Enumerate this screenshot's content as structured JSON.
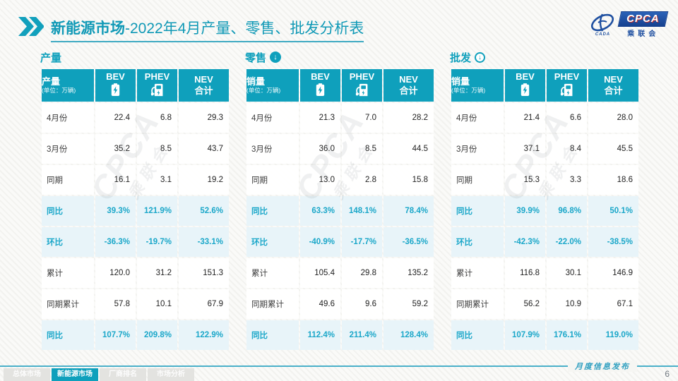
{
  "title": {
    "bold": "新能源市场",
    "rest": "-2022年4月产量、零售、批发分析表"
  },
  "logo": {
    "cpca": "CPCA",
    "cada": "CADA",
    "cn": "乘联会"
  },
  "colors": {
    "accent": "#0FA0BC",
    "pct_text": "#1BA7C9",
    "pct_row_bg": "#E8F4F9",
    "tab_inactive": "#E3E3E0",
    "logo_blue": "#1E4FA0",
    "divider": "#4AB0C9"
  },
  "tables": [
    {
      "section_label": "产量",
      "arrow_icon": "none",
      "header": {
        "title": "产量",
        "unit": "(单位：万辆)",
        "col_bev": "BEV",
        "col_phev": "PHEV",
        "col_nev_1": "NEV",
        "col_nev_2": "合计"
      },
      "rows": [
        {
          "label": "4月份",
          "values": [
            "22.4",
            "6.8",
            "29.3"
          ],
          "type": "normal"
        },
        {
          "label": "3月份",
          "values": [
            "35.2",
            "8.5",
            "43.7"
          ],
          "type": "normal"
        },
        {
          "label": "同期",
          "values": [
            "16.1",
            "3.1",
            "19.2"
          ],
          "type": "normal"
        },
        {
          "label": "同比",
          "values": [
            "39.3%",
            "121.9%",
            "52.6%"
          ],
          "type": "pct"
        },
        {
          "label": "环比",
          "values": [
            "-36.3%",
            "-19.7%",
            "-33.1%"
          ],
          "type": "pct"
        },
        {
          "label": "累计",
          "values": [
            "120.0",
            "31.2",
            "151.3"
          ],
          "type": "normal"
        },
        {
          "label": "同期累计",
          "values": [
            "57.8",
            "10.1",
            "67.9"
          ],
          "type": "normal"
        },
        {
          "label": "同比",
          "values": [
            "107.7%",
            "209.8%",
            "122.9%"
          ],
          "type": "pct"
        }
      ]
    },
    {
      "section_label": "零售",
      "arrow_icon": "down-arrow-filled",
      "header": {
        "title": "销量",
        "unit": "(单位：万辆)",
        "col_bev": "BEV",
        "col_phev": "PHEV",
        "col_nev_1": "NEV",
        "col_nev_2": "合计"
      },
      "rows": [
        {
          "label": "4月份",
          "values": [
            "21.3",
            "7.0",
            "28.2"
          ],
          "type": "normal"
        },
        {
          "label": "3月份",
          "values": [
            "36.0",
            "8.5",
            "44.5"
          ],
          "type": "normal"
        },
        {
          "label": "同期",
          "values": [
            "13.0",
            "2.8",
            "15.8"
          ],
          "type": "normal"
        },
        {
          "label": "同比",
          "values": [
            "63.3%",
            "148.1%",
            "78.4%"
          ],
          "type": "pct"
        },
        {
          "label": "环比",
          "values": [
            "-40.9%",
            "-17.7%",
            "-36.5%"
          ],
          "type": "pct"
        },
        {
          "label": "累计",
          "values": [
            "105.4",
            "29.8",
            "135.2"
          ],
          "type": "normal"
        },
        {
          "label": "同期累计",
          "values": [
            "49.6",
            "9.6",
            "59.2"
          ],
          "type": "normal"
        },
        {
          "label": "同比",
          "values": [
            "112.4%",
            "211.4%",
            "128.4%"
          ],
          "type": "pct"
        }
      ]
    },
    {
      "section_label": "批发",
      "arrow_icon": "down-arrow-ring",
      "header": {
        "title": "销量",
        "unit": "(单位：万辆)",
        "col_bev": "BEV",
        "col_phev": "PHEV",
        "col_nev_1": "NEV",
        "col_nev_2": "合计"
      },
      "rows": [
        {
          "label": "4月份",
          "values": [
            "21.4",
            "6.6",
            "28.0"
          ],
          "type": "normal"
        },
        {
          "label": "3月份",
          "values": [
            "37.1",
            "8.4",
            "45.5"
          ],
          "type": "normal"
        },
        {
          "label": "同期",
          "values": [
            "15.3",
            "3.3",
            "18.6"
          ],
          "type": "normal"
        },
        {
          "label": "同比",
          "values": [
            "39.9%",
            "96.8%",
            "50.1%"
          ],
          "type": "pct"
        },
        {
          "label": "环比",
          "values": [
            "-42.3%",
            "-22.0%",
            "-38.5%"
          ],
          "type": "pct"
        },
        {
          "label": "累计",
          "values": [
            "116.8",
            "30.1",
            "146.9"
          ],
          "type": "normal"
        },
        {
          "label": "同期累计",
          "values": [
            "56.2",
            "10.9",
            "67.1"
          ],
          "type": "normal"
        },
        {
          "label": "同比",
          "values": [
            "107.9%",
            "176.1%",
            "119.0%"
          ],
          "type": "pct"
        }
      ]
    }
  ],
  "watermark": {
    "line1": "CPCA",
    "line2": "乘联会"
  },
  "footer": {
    "publication": "月度信息发布",
    "page": "6",
    "tabs": [
      {
        "label": "总体市场",
        "active": false
      },
      {
        "label": "新能源市场",
        "active": true
      },
      {
        "label": "厂商排名",
        "active": false
      },
      {
        "label": "市场分析",
        "active": false
      }
    ]
  }
}
